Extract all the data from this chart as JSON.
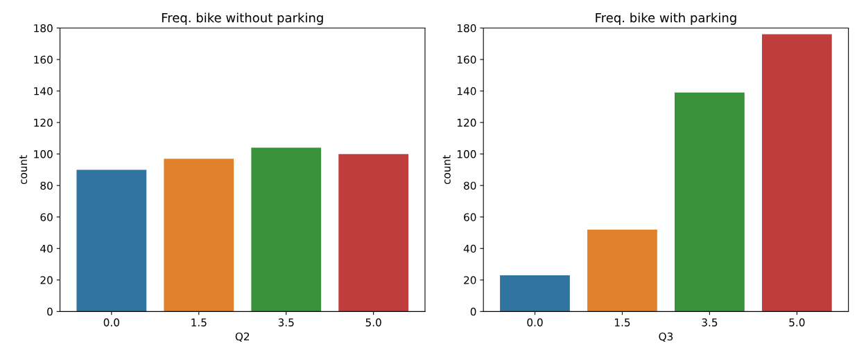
{
  "chart_data": [
    {
      "type": "bar",
      "title": "Freq. bike without parking",
      "xlabel": "Q2",
      "ylabel": "count",
      "categories": [
        "0.0",
        "1.5",
        "3.5",
        "5.0"
      ],
      "values": [
        90,
        97,
        104,
        100
      ],
      "colors": [
        "#3274a1",
        "#e1812c",
        "#3a923a",
        "#c03d3e"
      ],
      "ylim": [
        0,
        180
      ],
      "yticks": [
        0,
        20,
        40,
        60,
        80,
        100,
        120,
        140,
        160,
        180
      ],
      "grid": false,
      "legend": false
    },
    {
      "type": "bar",
      "title": "Freq. bike with parking",
      "xlabel": "Q3",
      "ylabel": "count",
      "categories": [
        "0.0",
        "1.5",
        "3.5",
        "5.0"
      ],
      "values": [
        23,
        52,
        139,
        176
      ],
      "colors": [
        "#3274a1",
        "#e1812c",
        "#3a923a",
        "#c03d3e"
      ],
      "ylim": [
        0,
        180
      ],
      "yticks": [
        0,
        20,
        40,
        60,
        80,
        100,
        120,
        140,
        160,
        180
      ],
      "grid": false,
      "legend": false
    }
  ]
}
